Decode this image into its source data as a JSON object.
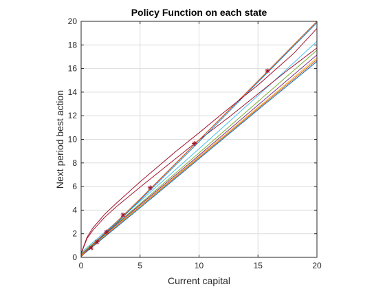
{
  "chart_data": {
    "type": "line",
    "title": "Policy Function on each state",
    "xlabel": "Current capital",
    "ylabel": "Next period best action",
    "xlim": [
      0,
      20
    ],
    "ylim": [
      0,
      20
    ],
    "xticks": [
      0,
      5,
      10,
      15,
      20
    ],
    "yticks": [
      0,
      2,
      4,
      6,
      8,
      10,
      12,
      14,
      16,
      18,
      20
    ],
    "grid": true,
    "box": true,
    "series": [
      {
        "color": "#0072BD",
        "x": [
          0,
          5,
          10,
          15,
          20
        ],
        "y": [
          0.1,
          4.2,
          8.35,
          12.5,
          16.6
        ]
      },
      {
        "color": "#D95319",
        "x": [
          0,
          5,
          10,
          15,
          20
        ],
        "y": [
          0.15,
          4.3,
          8.45,
          12.6,
          16.75
        ]
      },
      {
        "color": "#EDB120",
        "x": [
          0,
          5,
          10,
          15,
          20
        ],
        "y": [
          0.2,
          4.35,
          8.55,
          12.7,
          16.9
        ]
      },
      {
        "color": "#7E2F8E",
        "x": [
          0,
          5,
          10,
          15,
          20
        ],
        "y": [
          0.25,
          4.45,
          8.65,
          12.9,
          17.15
        ]
      },
      {
        "color": "#77AC30",
        "x": [
          0,
          5,
          10,
          15,
          20
        ],
        "y": [
          0.3,
          4.55,
          8.85,
          13.2,
          17.55
        ]
      },
      {
        "color": "#4DBEEE",
        "x": [
          0,
          5,
          10,
          15,
          20
        ],
        "y": [
          0.4,
          4.75,
          9.2,
          13.7,
          18.3
        ]
      },
      {
        "color": "#A2142F",
        "x": [
          0,
          0.5,
          1,
          2,
          3,
          5,
          7.5,
          10,
          12.5,
          15,
          17.5,
          20
        ],
        "y": [
          0.3,
          1.6,
          2.3,
          3.4,
          4.3,
          5.95,
          7.95,
          9.95,
          11.85,
          13.85,
          15.85,
          17.75
        ]
      },
      {
        "color": "#0072BD",
        "x": [
          0,
          0.5,
          1,
          1.5,
          2,
          3,
          5,
          10,
          15,
          20
        ],
        "y": [
          0.05,
          0.55,
          1.05,
          1.5,
          1.95,
          2.9,
          4.85,
          9.8,
          14.85,
          19.9
        ]
      },
      {
        "color": "#D95319",
        "x": [
          0,
          0.5,
          1,
          2,
          3,
          5,
          10,
          15,
          20
        ],
        "y": [
          0.05,
          0.6,
          1.1,
          2.05,
          3.0,
          4.95,
          9.95,
          14.95,
          20.0
        ]
      },
      {
        "color": "#A2142F",
        "x": [
          0,
          0.5,
          1,
          2,
          3,
          5,
          8,
          10,
          12,
          15,
          18,
          20
        ],
        "y": [
          0.35,
          1.7,
          2.5,
          3.65,
          4.6,
          6.4,
          8.95,
          10.55,
          12.2,
          14.6,
          17.25,
          19.4
        ]
      }
    ],
    "markers": {
      "symbol": "asterisk",
      "color": "#A2142F",
      "x": [
        0.85,
        1.35,
        2.15,
        3.55,
        5.85,
        9.6,
        15.8
      ],
      "y": [
        0.8,
        1.3,
        2.15,
        3.6,
        5.9,
        9.65,
        15.8
      ]
    }
  }
}
